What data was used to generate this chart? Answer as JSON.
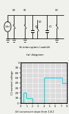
{
  "title_b": "(b) conversion steps from 1,8,1",
  "title_a": "(a) diagram",
  "ylabel": "C2 nominal voltage",
  "ytick_labels": [
    "0",
    "1/8",
    "2/8",
    "3/8",
    "4/8",
    "5/8",
    "6/8",
    "7/8",
    "1"
  ],
  "ytick_vals": [
    0,
    0.125,
    0.25,
    0.375,
    0.5,
    0.625,
    0.75,
    0.875,
    1.0
  ],
  "xlabel_vals": [
    0,
    1,
    2,
    3,
    4,
    5,
    6,
    7,
    8
  ],
  "staircase_x": [
    0,
    0.5,
    0.5,
    1.0,
    1.0,
    2.0,
    2.0,
    3.0,
    3.0,
    4.0,
    4.0,
    7.0,
    7.0,
    8.0
  ],
  "staircase_y": [
    0,
    0,
    0.25,
    0.25,
    0.125,
    0.125,
    0.0,
    0.0,
    0.0,
    0.0,
    0.625,
    0.625,
    0.5,
    0.5
  ],
  "line_color": "#00ddee",
  "plot_bg": "#dcdcdc",
  "fig_bg": "#f0f0ec",
  "grid_color": "#ffffff"
}
